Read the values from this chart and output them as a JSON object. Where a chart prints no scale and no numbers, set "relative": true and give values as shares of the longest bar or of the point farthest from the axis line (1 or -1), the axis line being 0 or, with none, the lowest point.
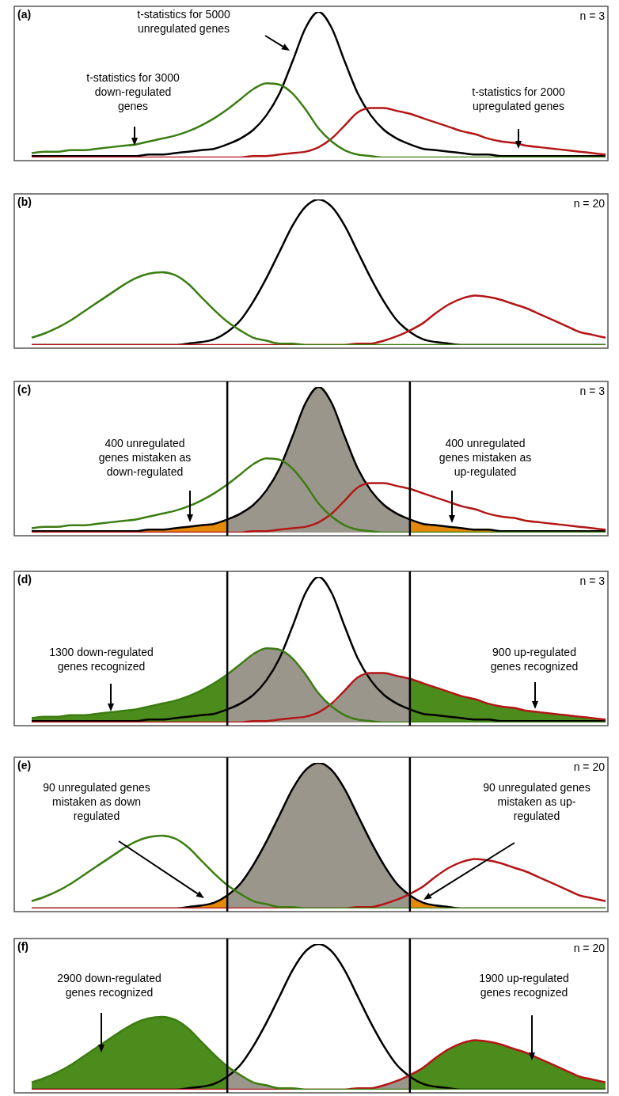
{
  "chart_data": [
    {
      "type": "line",
      "title": "(a)",
      "subtitle": "n = 3",
      "relative": true,
      "categories": [
        null,
        null,
        null,
        null,
        null,
        null,
        null,
        null,
        null,
        null,
        null,
        null,
        null,
        null,
        null,
        null,
        null,
        null,
        null,
        null,
        null,
        null,
        null,
        null,
        null,
        null,
        null,
        null,
        null,
        null,
        null,
        null,
        null,
        null,
        null,
        null,
        null,
        null,
        null,
        null,
        null,
        null,
        null,
        null,
        null
      ],
      "series": [
        {
          "color": "#3c7d12",
          "values": [
            0.03,
            0.04,
            0.04,
            0.05,
            0.05,
            0.06,
            0.07,
            0.08,
            0.09,
            0.11,
            0.13,
            0.15,
            0.18,
            0.22,
            0.27,
            0.33,
            0.4,
            0.47,
            0.51,
            0.5,
            0.44,
            0.33,
            0.2,
            0.11,
            0.05,
            0.02,
            0.01,
            0,
            0,
            0,
            0,
            0,
            0,
            0,
            0,
            0,
            0,
            0,
            0,
            0,
            0,
            0,
            0,
            0,
            0
          ]
        },
        {
          "color": "#b41616",
          "values": [
            0,
            0,
            0,
            0,
            0,
            0,
            0,
            0,
            0,
            0,
            0,
            0,
            0,
            0,
            0,
            0,
            0,
            0.01,
            0.01,
            0.02,
            0.03,
            0.04,
            0.07,
            0.13,
            0.22,
            0.31,
            0.34,
            0.34,
            0.32,
            0.3,
            0.27,
            0.24,
            0.21,
            0.18,
            0.16,
            0.13,
            0.11,
            0.1,
            0.08,
            0.07,
            0.06,
            0.05,
            0.04,
            0.03,
            0.02
          ]
        },
        {
          "color": "#000000",
          "values": [
            0.01,
            0.01,
            0.01,
            0.01,
            0.01,
            0.01,
            0.01,
            0.01,
            0.01,
            0.02,
            0.02,
            0.03,
            0.04,
            0.05,
            0.06,
            0.09,
            0.13,
            0.19,
            0.29,
            0.44,
            0.66,
            0.89,
            1,
            0.89,
            0.66,
            0.44,
            0.29,
            0.19,
            0.13,
            0.09,
            0.06,
            0.05,
            0.04,
            0.03,
            0.02,
            0.02,
            0.01,
            0.01,
            0.01,
            0.01,
            0.01,
            0.01,
            0.01,
            0.01,
            0.01
          ]
        }
      ],
      "annotations": [
        "t-statistics for 5000\nunregulated genes",
        "t-statistics for 3000\ndown-regulated\ngenes",
        "t-statistics for 2000\nupregulated genes"
      ]
    },
    {
      "type": "line",
      "title": "(b)",
      "subtitle": "n = 20",
      "relative": true,
      "categories": [
        null,
        null,
        null,
        null,
        null,
        null,
        null,
        null,
        null,
        null,
        null,
        null,
        null,
        null,
        null,
        null,
        null,
        null,
        null,
        null,
        null,
        null,
        null,
        null,
        null,
        null,
        null,
        null,
        null,
        null,
        null,
        null,
        null,
        null,
        null,
        null,
        null,
        null,
        null,
        null,
        null,
        null,
        null,
        null,
        null
      ],
      "series": [
        {
          "color": "#3c7d12",
          "values": [
            0.05,
            0.08,
            0.12,
            0.17,
            0.23,
            0.29,
            0.35,
            0.41,
            0.46,
            0.49,
            0.5,
            0.48,
            0.42,
            0.33,
            0.24,
            0.16,
            0.1,
            0.05,
            0.03,
            0.01,
            0.01,
            0,
            0,
            0,
            0,
            0,
            0,
            0,
            0,
            0,
            0,
            0,
            0,
            0,
            0,
            0,
            0,
            0,
            0,
            0,
            0,
            0,
            0,
            0,
            0
          ]
        },
        {
          "color": "#b41616",
          "values": [
            0,
            0,
            0,
            0,
            0,
            0,
            0,
            0,
            0,
            0,
            0,
            0,
            0,
            0,
            0,
            0,
            0,
            0,
            0,
            0,
            0,
            0,
            0,
            0,
            0,
            0.01,
            0.01,
            0.03,
            0.06,
            0.1,
            0.15,
            0.22,
            0.28,
            0.32,
            0.34,
            0.33,
            0.31,
            0.28,
            0.25,
            0.21,
            0.17,
            0.13,
            0.09,
            0.07,
            0.05
          ]
        },
        {
          "color": "#000000",
          "values": [
            0,
            0,
            0,
            0,
            0,
            0,
            0,
            0,
            0,
            0,
            0,
            0,
            0.01,
            0.02,
            0.04,
            0.09,
            0.17,
            0.3,
            0.46,
            0.64,
            0.82,
            0.95,
            1,
            0.95,
            0.82,
            0.64,
            0.46,
            0.3,
            0.17,
            0.09,
            0.04,
            0.02,
            0.01,
            0,
            0,
            0,
            0,
            0,
            0,
            0,
            0,
            0,
            0,
            0,
            0
          ]
        }
      ]
    },
    {
      "type": "line",
      "title": "(c)",
      "subtitle": "n = 3",
      "relative": true,
      "categories": [
        null,
        null,
        null,
        null,
        null,
        null,
        null,
        null,
        null,
        null,
        null,
        null,
        null,
        null,
        null,
        null,
        null,
        null,
        null,
        null,
        null,
        null,
        null,
        null,
        null,
        null,
        null,
        null,
        null,
        null,
        null,
        null,
        null,
        null,
        null,
        null,
        null,
        null,
        null,
        null,
        null,
        null,
        null,
        null,
        null
      ],
      "series": [
        {
          "type": "area",
          "color": "#9b968c",
          "values": [
            null,
            null,
            null,
            null,
            null,
            null,
            null,
            null,
            null,
            null,
            null,
            null,
            null,
            null,
            null,
            0.09,
            0.13,
            0.19,
            0.29,
            0.44,
            0.66,
            0.89,
            1,
            0.89,
            0.66,
            0.44,
            0.29,
            0.19,
            0.13,
            0.09,
            null,
            null,
            null,
            null,
            null,
            null,
            null,
            null,
            null,
            null,
            null,
            null,
            null,
            null,
            null
          ]
        },
        {
          "type": "area",
          "color": "#e5890a",
          "values": [
            0.01,
            0.01,
            0.01,
            0.01,
            0.01,
            0.01,
            0.01,
            0.01,
            0.01,
            0.02,
            0.02,
            0.03,
            0.04,
            0.05,
            0.06,
            0.09,
            null,
            null,
            null,
            null,
            null,
            null,
            null,
            null,
            null,
            null,
            null,
            null,
            null,
            null,
            null,
            null,
            null,
            null,
            null,
            null,
            null,
            null,
            null,
            null,
            null,
            null,
            null,
            null,
            null
          ]
        },
        {
          "type": "area",
          "color": "#e5890a",
          "values": [
            null,
            null,
            null,
            null,
            null,
            null,
            null,
            null,
            null,
            null,
            null,
            null,
            null,
            null,
            null,
            null,
            null,
            null,
            null,
            null,
            null,
            null,
            null,
            null,
            null,
            null,
            null,
            null,
            null,
            0.09,
            0.06,
            0.05,
            0.04,
            0.03,
            0.02,
            0.02,
            0.01,
            0.01,
            0.01,
            0.01,
            0.01,
            0.01,
            0.01,
            0.01,
            0.01
          ]
        },
        {
          "color": "#3c7d12",
          "values": [
            0.03,
            0.04,
            0.04,
            0.05,
            0.05,
            0.06,
            0.07,
            0.08,
            0.09,
            0.11,
            0.13,
            0.15,
            0.18,
            0.22,
            0.27,
            0.33,
            0.4,
            0.47,
            0.51,
            0.5,
            0.44,
            0.33,
            0.2,
            0.11,
            0.05,
            0.02,
            0.01,
            0,
            0,
            0,
            0,
            0,
            0,
            0,
            0,
            0,
            0,
            0,
            0,
            0,
            0,
            0,
            0,
            0,
            0
          ]
        },
        {
          "color": "#b41616",
          "values": [
            0,
            0,
            0,
            0,
            0,
            0,
            0,
            0,
            0,
            0,
            0,
            0,
            0,
            0,
            0,
            0,
            0,
            0.01,
            0.01,
            0.02,
            0.03,
            0.04,
            0.07,
            0.13,
            0.22,
            0.31,
            0.34,
            0.34,
            0.32,
            0.3,
            0.27,
            0.24,
            0.21,
            0.18,
            0.16,
            0.13,
            0.11,
            0.1,
            0.08,
            0.07,
            0.06,
            0.05,
            0.04,
            0.03,
            0.02
          ]
        },
        {
          "color": "#000000",
          "values": [
            0.01,
            0.01,
            0.01,
            0.01,
            0.01,
            0.01,
            0.01,
            0.01,
            0.01,
            0.02,
            0.02,
            0.03,
            0.04,
            0.05,
            0.06,
            0.09,
            0.13,
            0.19,
            0.29,
            0.44,
            0.66,
            0.89,
            1,
            0.89,
            0.66,
            0.44,
            0.29,
            0.19,
            0.13,
            0.09,
            0.06,
            0.05,
            0.04,
            0.03,
            0.02,
            0.02,
            0.01,
            0.01,
            0.01,
            0.01,
            0.01,
            0.01,
            0.01,
            0.01,
            0.01
          ]
        }
      ],
      "annotations": [
        "400 unregulated\ngenes mistaken as\ndown-regulated",
        "400 unregulated\ngenes mistaken as\nup-regulated"
      ]
    },
    {
      "type": "line",
      "title": "(d)",
      "subtitle": "n = 3",
      "relative": true,
      "categories": [
        null,
        null,
        null,
        null,
        null,
        null,
        null,
        null,
        null,
        null,
        null,
        null,
        null,
        null,
        null,
        null,
        null,
        null,
        null,
        null,
        null,
        null,
        null,
        null,
        null,
        null,
        null,
        null,
        null,
        null,
        null,
        null,
        null,
        null,
        null,
        null,
        null,
        null,
        null,
        null,
        null,
        null,
        null,
        null,
        null
      ],
      "series": [
        {
          "type": "area",
          "color": "#9b968c",
          "values": [
            null,
            null,
            null,
            null,
            null,
            null,
            null,
            null,
            null,
            null,
            null,
            null,
            null,
            null,
            null,
            0.33,
            0.4,
            0.47,
            0.51,
            0.5,
            0.44,
            0.33,
            0.2,
            0.13,
            0.22,
            0.31,
            0.34,
            0.34,
            0.32,
            0.3,
            null,
            null,
            null,
            null,
            null,
            null,
            null,
            null,
            null,
            null,
            null,
            null,
            null,
            null,
            null
          ]
        },
        {
          "type": "area",
          "color": "#4b8c1c",
          "values": [
            0.03,
            0.04,
            0.04,
            0.05,
            0.05,
            0.06,
            0.07,
            0.08,
            0.09,
            0.11,
            0.13,
            0.15,
            0.18,
            0.22,
            0.27,
            0.33,
            null,
            null,
            null,
            null,
            null,
            null,
            null,
            null,
            null,
            null,
            null,
            null,
            null,
            null,
            null,
            null,
            null,
            null,
            null,
            null,
            null,
            null,
            null,
            null,
            null,
            null,
            null,
            null,
            null
          ]
        },
        {
          "type": "area",
          "color": "#4b8c1c",
          "values": [
            null,
            null,
            null,
            null,
            null,
            null,
            null,
            null,
            null,
            null,
            null,
            null,
            null,
            null,
            null,
            null,
            null,
            null,
            null,
            null,
            null,
            null,
            null,
            null,
            null,
            null,
            null,
            null,
            null,
            0.3,
            0.27,
            0.24,
            0.21,
            0.18,
            0.16,
            0.13,
            0.11,
            0.1,
            0.08,
            0.07,
            0.06,
            0.05,
            0.04,
            0.03,
            0.02
          ]
        },
        {
          "color": "#3c7d12",
          "values": [
            0.03,
            0.04,
            0.04,
            0.05,
            0.05,
            0.06,
            0.07,
            0.08,
            0.09,
            0.11,
            0.13,
            0.15,
            0.18,
            0.22,
            0.27,
            0.33,
            0.4,
            0.47,
            0.51,
            0.5,
            0.44,
            0.33,
            0.2,
            0.11,
            0.05,
            0.02,
            0.01,
            0,
            0,
            0,
            0,
            0,
            0,
            0,
            0,
            0,
            0,
            0,
            0,
            0,
            0,
            0,
            0,
            0,
            0
          ]
        },
        {
          "color": "#b41616",
          "values": [
            0,
            0,
            0,
            0,
            0,
            0,
            0,
            0,
            0,
            0,
            0,
            0,
            0,
            0,
            0,
            0,
            0,
            0.01,
            0.01,
            0.02,
            0.03,
            0.04,
            0.07,
            0.13,
            0.22,
            0.31,
            0.34,
            0.34,
            0.32,
            0.3,
            0.27,
            0.24,
            0.21,
            0.18,
            0.16,
            0.13,
            0.11,
            0.1,
            0.08,
            0.07,
            0.06,
            0.05,
            0.04,
            0.03,
            0.02
          ]
        },
        {
          "color": "#000000",
          "values": [
            0.01,
            0.01,
            0.01,
            0.01,
            0.01,
            0.01,
            0.01,
            0.01,
            0.01,
            0.02,
            0.02,
            0.03,
            0.04,
            0.05,
            0.06,
            0.09,
            0.13,
            0.19,
            0.29,
            0.44,
            0.66,
            0.89,
            1,
            0.89,
            0.66,
            0.44,
            0.29,
            0.19,
            0.13,
            0.09,
            0.06,
            0.05,
            0.04,
            0.03,
            0.02,
            0.02,
            0.01,
            0.01,
            0.01,
            0.01,
            0.01,
            0.01,
            0.01,
            0.01,
            0.01
          ]
        }
      ],
      "annotations": [
        "1300 down-regulated\ngenes recognized",
        "900 up-regulated\ngenes recognized"
      ]
    },
    {
      "type": "line",
      "title": "(e)",
      "subtitle": "n = 20",
      "relative": true,
      "categories": [
        null,
        null,
        null,
        null,
        null,
        null,
        null,
        null,
        null,
        null,
        null,
        null,
        null,
        null,
        null,
        null,
        null,
        null,
        null,
        null,
        null,
        null,
        null,
        null,
        null,
        null,
        null,
        null,
        null,
        null,
        null,
        null,
        null,
        null,
        null,
        null,
        null,
        null,
        null,
        null,
        null,
        null,
        null,
        null,
        null
      ],
      "series": [
        {
          "type": "area",
          "color": "#9b968c",
          "values": [
            null,
            null,
            null,
            null,
            null,
            null,
            null,
            null,
            null,
            null,
            null,
            null,
            null,
            null,
            null,
            0.09,
            0.17,
            0.3,
            0.46,
            0.64,
            0.82,
            0.95,
            1,
            0.95,
            0.82,
            0.64,
            0.46,
            0.3,
            0.17,
            0.09,
            null,
            null,
            null,
            null,
            null,
            null,
            null,
            null,
            null,
            null,
            null,
            null,
            null,
            null,
            null
          ]
        },
        {
          "type": "area",
          "color": "#e5890a",
          "values": [
            0,
            0,
            0,
            0,
            0,
            0,
            0,
            0,
            0,
            0,
            0,
            0,
            0.01,
            0.02,
            0.04,
            0.09,
            null,
            null,
            null,
            null,
            null,
            null,
            null,
            null,
            null,
            null,
            null,
            null,
            null,
            null,
            null,
            null,
            null,
            null,
            null,
            null,
            null,
            null,
            null,
            null,
            null,
            null,
            null,
            null,
            null
          ]
        },
        {
          "type": "area",
          "color": "#e5890a",
          "values": [
            null,
            null,
            null,
            null,
            null,
            null,
            null,
            null,
            null,
            null,
            null,
            null,
            null,
            null,
            null,
            null,
            null,
            null,
            null,
            null,
            null,
            null,
            null,
            null,
            null,
            null,
            null,
            null,
            null,
            0.09,
            0.04,
            0.02,
            0.01,
            0,
            0,
            0,
            0,
            0,
            0,
            0,
            0,
            0,
            0,
            0,
            0
          ]
        },
        {
          "color": "#3c7d12",
          "values": [
            0.05,
            0.08,
            0.12,
            0.17,
            0.23,
            0.29,
            0.35,
            0.41,
            0.46,
            0.49,
            0.5,
            0.48,
            0.42,
            0.33,
            0.24,
            0.16,
            0.1,
            0.05,
            0.03,
            0.01,
            0.01,
            0,
            0,
            0,
            0,
            0,
            0,
            0,
            0,
            0,
            0,
            0,
            0,
            0,
            0,
            0,
            0,
            0,
            0,
            0,
            0,
            0,
            0,
            0,
            0
          ]
        },
        {
          "color": "#b41616",
          "values": [
            0,
            0,
            0,
            0,
            0,
            0,
            0,
            0,
            0,
            0,
            0,
            0,
            0,
            0,
            0,
            0,
            0,
            0,
            0,
            0,
            0,
            0,
            0,
            0,
            0,
            0.01,
            0.01,
            0.03,
            0.06,
            0.1,
            0.15,
            0.22,
            0.28,
            0.32,
            0.34,
            0.33,
            0.31,
            0.28,
            0.25,
            0.21,
            0.17,
            0.13,
            0.09,
            0.07,
            0.05
          ]
        },
        {
          "color": "#000000",
          "values": [
            0,
            0,
            0,
            0,
            0,
            0,
            0,
            0,
            0,
            0,
            0,
            0,
            0.01,
            0.02,
            0.04,
            0.09,
            0.17,
            0.3,
            0.46,
            0.64,
            0.82,
            0.95,
            1,
            0.95,
            0.82,
            0.64,
            0.46,
            0.3,
            0.17,
            0.09,
            0.04,
            0.02,
            0.01,
            0,
            0,
            0,
            0,
            0,
            0,
            0,
            0,
            0,
            0,
            0,
            0
          ]
        }
      ],
      "annotations": [
        "90 unregulated genes\nmistaken as down\nregulated",
        "90 unregulated genes\nmistaken as up-\nregulated"
      ]
    },
    {
      "type": "line",
      "title": "(f)",
      "subtitle": "n = 20",
      "relative": true,
      "categories": [
        null,
        null,
        null,
        null,
        null,
        null,
        null,
        null,
        null,
        null,
        null,
        null,
        null,
        null,
        null,
        null,
        null,
        null,
        null,
        null,
        null,
        null,
        null,
        null,
        null,
        null,
        null,
        null,
        null,
        null,
        null,
        null,
        null,
        null,
        null,
        null,
        null,
        null,
        null,
        null,
        null,
        null,
        null,
        null,
        null
      ],
      "series": [
        {
          "type": "area",
          "color": "#9b968c",
          "values": [
            null,
            null,
            null,
            null,
            null,
            null,
            null,
            null,
            null,
            null,
            null,
            null,
            null,
            null,
            null,
            0.16,
            0.1,
            0.05,
            0.03,
            0.01,
            0.01,
            0,
            0,
            0,
            0,
            0.01,
            0.01,
            0.03,
            0.06,
            0.1,
            null,
            null,
            null,
            null,
            null,
            null,
            null,
            null,
            null,
            null,
            null,
            null,
            null,
            null,
            null
          ]
        },
        {
          "type": "area",
          "color": "#4b8c1c",
          "values": [
            0.05,
            0.08,
            0.12,
            0.17,
            0.23,
            0.29,
            0.35,
            0.41,
            0.46,
            0.49,
            0.5,
            0.48,
            0.42,
            0.33,
            0.24,
            0.16,
            null,
            null,
            null,
            null,
            null,
            null,
            null,
            null,
            null,
            null,
            null,
            null,
            null,
            null,
            null,
            null,
            null,
            null,
            null,
            null,
            null,
            null,
            null,
            null,
            null,
            null,
            null,
            null,
            null
          ]
        },
        {
          "type": "area",
          "color": "#4b8c1c",
          "values": [
            null,
            null,
            null,
            null,
            null,
            null,
            null,
            null,
            null,
            null,
            null,
            null,
            null,
            null,
            null,
            null,
            null,
            null,
            null,
            null,
            null,
            null,
            null,
            null,
            null,
            null,
            null,
            null,
            null,
            0.1,
            0.15,
            0.22,
            0.28,
            0.32,
            0.34,
            0.33,
            0.31,
            0.28,
            0.25,
            0.21,
            0.17,
            0.13,
            0.09,
            0.07,
            0.05
          ]
        },
        {
          "color": "#3c7d12",
          "values": [
            0.05,
            0.08,
            0.12,
            0.17,
            0.23,
            0.29,
            0.35,
            0.41,
            0.46,
            0.49,
            0.5,
            0.48,
            0.42,
            0.33,
            0.24,
            0.16,
            0.1,
            0.05,
            0.03,
            0.01,
            0.01,
            0,
            0,
            0,
            0,
            0,
            0,
            0,
            0,
            0,
            0,
            0,
            0,
            0,
            0,
            0,
            0,
            0,
            0,
            0,
            0,
            0,
            0,
            0,
            0
          ]
        },
        {
          "color": "#b41616",
          "values": [
            0,
            0,
            0,
            0,
            0,
            0,
            0,
            0,
            0,
            0,
            0,
            0,
            0,
            0,
            0,
            0,
            0,
            0,
            0,
            0,
            0,
            0,
            0,
            0,
            0,
            0.01,
            0.01,
            0.03,
            0.06,
            0.1,
            0.15,
            0.22,
            0.28,
            0.32,
            0.34,
            0.33,
            0.31,
            0.28,
            0.25,
            0.21,
            0.17,
            0.13,
            0.09,
            0.07,
            0.05
          ]
        },
        {
          "color": "#000000",
          "values": [
            0,
            0,
            0,
            0,
            0,
            0,
            0,
            0,
            0,
            0,
            0,
            0,
            0.01,
            0.02,
            0.04,
            0.09,
            0.17,
            0.3,
            0.46,
            0.64,
            0.82,
            0.95,
            1,
            0.95,
            0.82,
            0.64,
            0.46,
            0.3,
            0.17,
            0.09,
            0.04,
            0.02,
            0.01,
            0,
            0,
            0,
            0,
            0,
            0,
            0,
            0,
            0,
            0,
            0,
            0
          ]
        }
      ],
      "annotations": [
        "2900 down-regulated\ngenes recognized",
        "1900 up-regulated\ngenes recognized"
      ]
    }
  ]
}
